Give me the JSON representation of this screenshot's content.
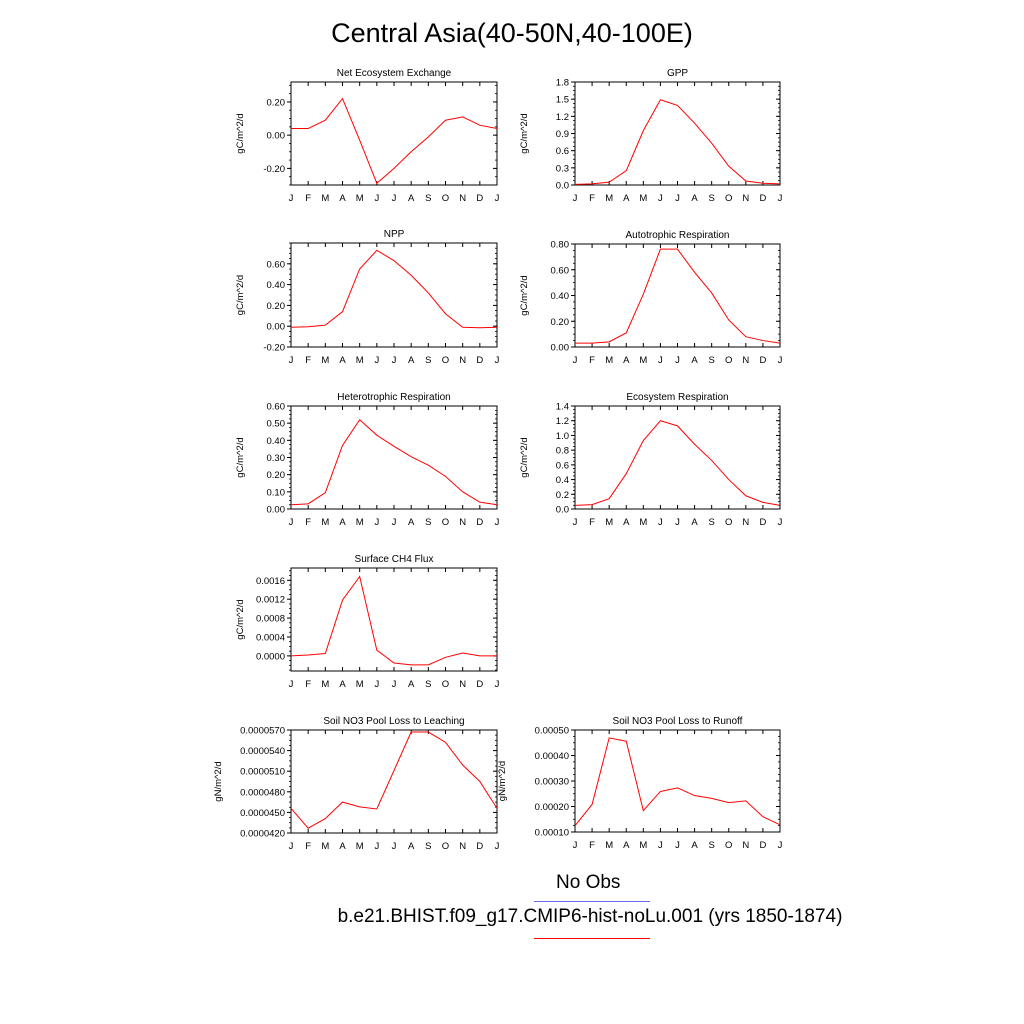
{
  "page": {
    "title": "Central Asia(40-50N,40-100E)"
  },
  "legend": {
    "obs_label": "No Obs",
    "obs_color": "#6b6bf0",
    "model_label": "b.e21.BHIST.f09_g17.CMIP6-hist-noLu.001 (yrs 1850-1874)",
    "model_color": "#ff0000"
  },
  "chart_data": [
    {
      "type": "line",
      "title": "Net Ecosystem Exchange",
      "ylabel": "gC/m^2/d",
      "categories": [
        "J",
        "F",
        "M",
        "A",
        "M",
        "J",
        "J",
        "A",
        "S",
        "O",
        "N",
        "D",
        "J"
      ],
      "ylim": [
        -0.3,
        0.32
      ],
      "yticks": [
        -0.2,
        0.0,
        0.2
      ],
      "ytick_labels": [
        "-0.20",
        "0.00",
        "0.20"
      ],
      "series": [
        {
          "color": "#ff0000",
          "values": [
            0.04,
            0.04,
            0.09,
            0.22,
            -0.03,
            -0.29,
            -0.2,
            -0.1,
            -0.01,
            0.09,
            0.11,
            0.06,
            0.04
          ]
        }
      ]
    },
    {
      "type": "line",
      "title": "GPP",
      "ylabel": "gC/m^2/d",
      "categories": [
        "J",
        "F",
        "M",
        "A",
        "M",
        "J",
        "J",
        "A",
        "S",
        "O",
        "N",
        "D",
        "J"
      ],
      "ylim": [
        0.0,
        1.8
      ],
      "yticks": [
        0.0,
        0.3,
        0.6,
        0.9,
        1.2,
        1.5,
        1.8
      ],
      "ytick_labels": [
        "0.0",
        "0.3",
        "0.6",
        "0.9",
        "1.2",
        "1.5",
        "1.8"
      ],
      "series": [
        {
          "color": "#ff0000",
          "values": [
            0.01,
            0.02,
            0.05,
            0.25,
            0.95,
            1.49,
            1.39,
            1.08,
            0.73,
            0.33,
            0.07,
            0.03,
            0.02
          ]
        }
      ]
    },
    {
      "type": "line",
      "title": "NPP",
      "ylabel": "gC/m^2/d",
      "categories": [
        "J",
        "F",
        "M",
        "A",
        "M",
        "J",
        "J",
        "A",
        "S",
        "O",
        "N",
        "D",
        "J"
      ],
      "ylim": [
        -0.2,
        0.8
      ],
      "yticks": [
        -0.2,
        0.0,
        0.2,
        0.4,
        0.6
      ],
      "ytick_labels": [
        "-0.20",
        "0.00",
        "0.20",
        "0.40",
        "0.60"
      ],
      "series": [
        {
          "color": "#ff0000",
          "values": [
            -0.01,
            -0.005,
            0.01,
            0.14,
            0.55,
            0.73,
            0.63,
            0.49,
            0.32,
            0.12,
            -0.01,
            -0.015,
            -0.01
          ]
        }
      ]
    },
    {
      "type": "line",
      "title": "Autotrophic Respiration",
      "ylabel": "gC/m^2/d",
      "categories": [
        "J",
        "F",
        "M",
        "A",
        "M",
        "J",
        "J",
        "A",
        "S",
        "O",
        "N",
        "D",
        "J"
      ],
      "ylim": [
        0.0,
        0.8
      ],
      "yticks": [
        0.0,
        0.2,
        0.4,
        0.6,
        0.8
      ],
      "ytick_labels": [
        "0.00",
        "0.20",
        "0.40",
        "0.60",
        "0.80"
      ],
      "series": [
        {
          "color": "#ff0000",
          "values": [
            0.03,
            0.03,
            0.04,
            0.11,
            0.41,
            0.76,
            0.76,
            0.58,
            0.42,
            0.21,
            0.08,
            0.05,
            0.03
          ]
        }
      ]
    },
    {
      "type": "line",
      "title": "Heterotrophic Respiration",
      "ylabel": "gC/m^2/d",
      "categories": [
        "J",
        "F",
        "M",
        "A",
        "M",
        "J",
        "J",
        "A",
        "S",
        "O",
        "N",
        "D",
        "J"
      ],
      "ylim": [
        0.0,
        0.6
      ],
      "yticks": [
        0.0,
        0.1,
        0.2,
        0.3,
        0.4,
        0.5,
        0.6
      ],
      "ytick_labels": [
        "0.00",
        "0.10",
        "0.20",
        "0.30",
        "0.40",
        "0.50",
        "0.60"
      ],
      "series": [
        {
          "color": "#ff0000",
          "values": [
            0.025,
            0.03,
            0.095,
            0.37,
            0.52,
            0.43,
            0.365,
            0.305,
            0.255,
            0.19,
            0.1,
            0.04,
            0.025
          ]
        }
      ]
    },
    {
      "type": "line",
      "title": "Ecosystem Respiration",
      "ylabel": "gC/m^2/d",
      "categories": [
        "J",
        "F",
        "M",
        "A",
        "M",
        "J",
        "J",
        "A",
        "S",
        "O",
        "N",
        "D",
        "J"
      ],
      "ylim": [
        0.0,
        1.4
      ],
      "yticks": [
        0.0,
        0.2,
        0.4,
        0.6,
        0.8,
        1.0,
        1.2,
        1.4
      ],
      "ytick_labels": [
        "0.0",
        "0.2",
        "0.4",
        "0.6",
        "0.8",
        "1.0",
        "1.2",
        "1.4"
      ],
      "series": [
        {
          "color": "#ff0000",
          "values": [
            0.05,
            0.06,
            0.14,
            0.48,
            0.93,
            1.2,
            1.13,
            0.88,
            0.66,
            0.4,
            0.18,
            0.09,
            0.05
          ]
        }
      ]
    },
    {
      "type": "line",
      "title": "Surface CH4 Flux",
      "ylabel": "gC/m^2/d",
      "categories": [
        "J",
        "F",
        "M",
        "A",
        "M",
        "J",
        "J",
        "A",
        "S",
        "O",
        "N",
        "D",
        "J"
      ],
      "ylim": [
        -0.00032,
        0.00186
      ],
      "yticks": [
        0.0,
        0.0004,
        0.0008,
        0.0012,
        0.0016
      ],
      "ytick_labels": [
        "0.0000",
        "0.0004",
        "0.0008",
        "0.0012",
        "0.0016"
      ],
      "series": [
        {
          "color": "#ff0000",
          "values": [
            0.0,
            2e-05,
            5e-05,
            0.00118,
            0.00168,
            0.00012,
            -0.00015,
            -0.00019,
            -0.00019,
            -3e-05,
            6e-05,
            0.0,
            0.0
          ]
        }
      ]
    },
    {
      "type": "line",
      "title": "Soil NO3 Pool Loss to Leaching",
      "ylabel": "gN/m^2/d",
      "categories": [
        "J",
        "F",
        "M",
        "A",
        "M",
        "J",
        "J",
        "A",
        "S",
        "O",
        "N",
        "D",
        "J"
      ],
      "ylim": [
        4.2e-05,
        5.7e-05
      ],
      "yticks": [
        4.2e-05,
        4.5e-05,
        4.8e-05,
        5.1e-05,
        5.4e-05,
        5.7e-05
      ],
      "ytick_labels": [
        "0.0000420",
        "0.0000450",
        "0.0000480",
        "0.0000510",
        "0.0000540",
        "0.0000570"
      ],
      "series": [
        {
          "color": "#ff0000",
          "values": [
            4.56e-05,
            4.27e-05,
            4.41e-05,
            4.65e-05,
            4.58e-05,
            4.55e-05,
            5.11e-05,
            5.67e-05,
            5.67e-05,
            5.52e-05,
            5.19e-05,
            4.95e-05,
            4.56e-05
          ]
        }
      ]
    },
    {
      "type": "line",
      "title": "Soil NO3 Pool Loss to Runoff",
      "ylabel": "gN/m^2/d",
      "categories": [
        "J",
        "F",
        "M",
        "A",
        "M",
        "J",
        "J",
        "A",
        "S",
        "O",
        "N",
        "D",
        "J"
      ],
      "ylim": [
        0.0001,
        0.0005
      ],
      "yticks": [
        0.0001,
        0.0002,
        0.0003,
        0.0004,
        0.0005
      ],
      "ytick_labels": [
        "0.00010",
        "0.00020",
        "0.00030",
        "0.00040",
        "0.00050"
      ],
      "series": [
        {
          "color": "#ff0000",
          "values": [
            0.000125,
            0.000208,
            0.000469,
            0.000456,
            0.000184,
            0.000259,
            0.000273,
            0.000243,
            0.000232,
            0.000215,
            0.000222,
            0.00016,
            0.000128
          ]
        }
      ]
    }
  ]
}
